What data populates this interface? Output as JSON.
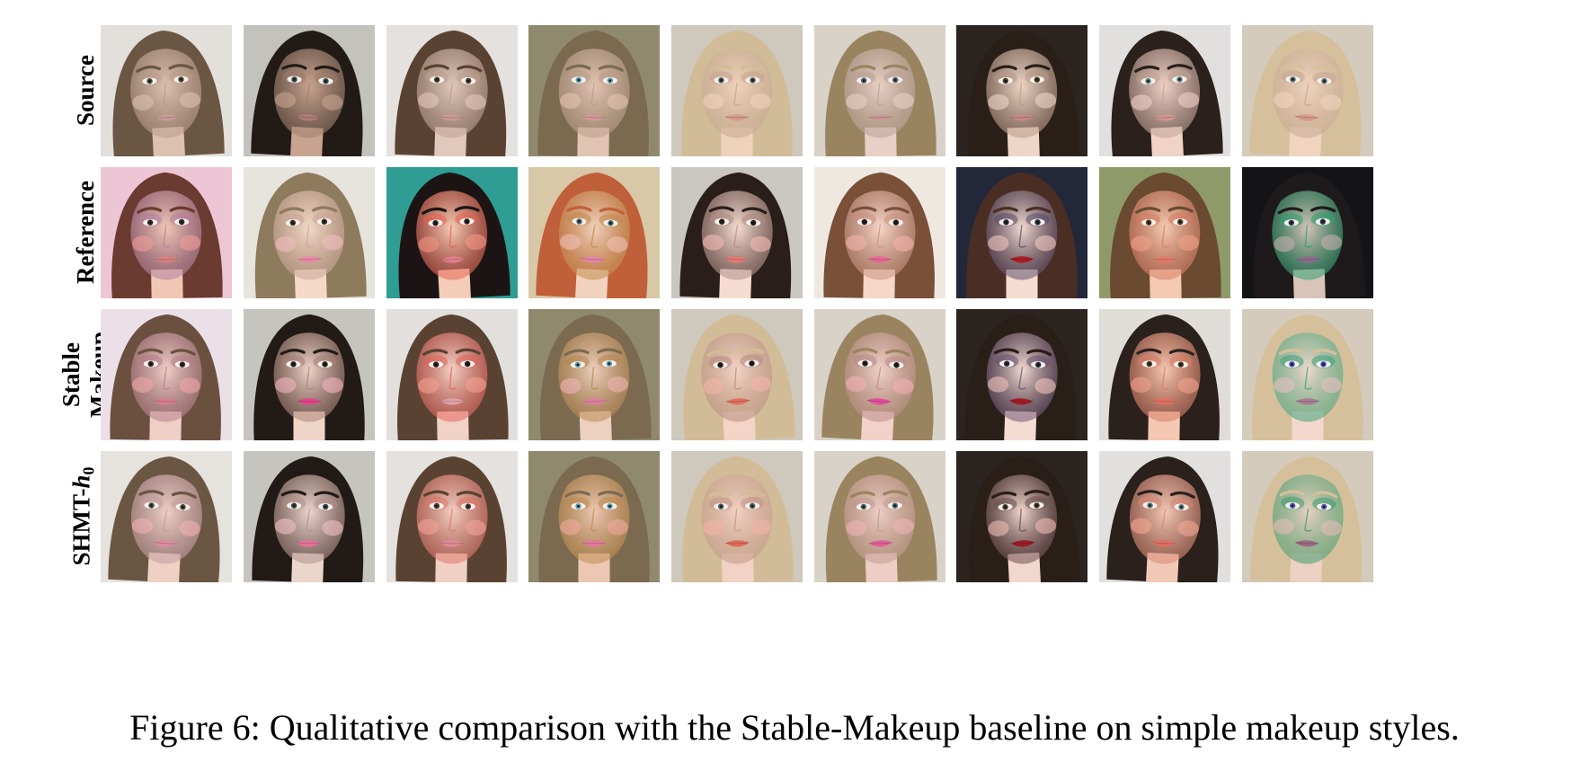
{
  "figure": {
    "row_labels": [
      {
        "id": "source",
        "lines": [
          "Source"
        ]
      },
      {
        "id": "reference",
        "lines": [
          "Reference"
        ]
      },
      {
        "id": "stable-makeup",
        "lines": [
          "Stable",
          "Makeup"
        ]
      },
      {
        "id": "shmt",
        "prefix": "SHMT-",
        "var": "h",
        "sub": "0"
      }
    ],
    "caption": "Figure 6: Qualitative comparison with the Stable-Makeup baseline on simple makeup styles.",
    "columns": [
      {
        "source": {
          "bg": "#e3e0dc",
          "hair": "#6b5644",
          "skin": "#dcc1b0",
          "lip": "#c99c98",
          "eye": "#4a4a3c",
          "cheek": "#dcc1b0",
          "shadow": "#b89a88"
        },
        "reference": {
          "bg": "#ecc6d4",
          "hair": "#6b3a30",
          "skin": "#f0c7b4",
          "lip": "#d98080",
          "eye": "#3a2a2a",
          "cheek": "#ef9f9a",
          "shadow": "#b07fa0"
        },
        "stable": {
          "bg": "#ece0e8",
          "hair": "#6b5040",
          "skin": "#f0cfc6",
          "lip": "#d77d8f",
          "eye": "#3a2a28",
          "cheek": "#f1a8aa",
          "shadow": "#b37c8a"
        },
        "shmt": {
          "bg": "#e6e2de",
          "hair": "#6b5644",
          "skin": "#eed0c4",
          "lip": "#e08aa0",
          "eye": "#4a4a3c",
          "cheek": "#f2b0b4",
          "shadow": "#c39aa0"
        }
      },
      {
        "source": {
          "bg": "#c4c2bc",
          "hair": "#221a16",
          "skin": "#c8a490",
          "lip": "#b07c76",
          "eye": "#3c4a48",
          "cheek": "#c8a490",
          "shadow": "#9c7c6c"
        },
        "reference": {
          "bg": "#e6e4dc",
          "hair": "#8e7a5c",
          "skin": "#f3d9c6",
          "lip": "#ea88a6",
          "eye": "#3a2a24",
          "cheek": "#f4bcc0",
          "shadow": "#c8a496"
        },
        "stable": {
          "bg": "#c6c4be",
          "hair": "#221a16",
          "skin": "#efd4c8",
          "lip": "#e0458c",
          "eye": "#2a2422",
          "cheek": "#f4b6c0",
          "shadow": "#a88074"
        },
        "shmt": {
          "bg": "#c6c4be",
          "hair": "#221a16",
          "skin": "#ecd6cc",
          "lip": "#e8709c",
          "eye": "#3c4a48",
          "cheek": "#f2c0c6",
          "shadow": "#b09088"
        }
      },
      {
        "source": {
          "bg": "#e4e1de",
          "hair": "#5a4232",
          "skin": "#e2c8bc",
          "lip": "#c79a96",
          "eye": "#4a3c34",
          "cheek": "#e2c8bc",
          "shadow": "#bca090"
        },
        "reference": {
          "bg": "#2f9d93",
          "hair": "#1c1414",
          "skin": "#f4cdb8",
          "lip": "#e0808a",
          "eye": "#2a1c1c",
          "cheek": "#f39682",
          "shadow": "#e5604e"
        },
        "stable": {
          "bg": "#e2dfdc",
          "hair": "#5a4232",
          "skin": "#f1d2c6",
          "lip": "#e0a0a6",
          "eye": "#2a1c1c",
          "cheek": "#f3a292",
          "shadow": "#e4605a"
        },
        "shmt": {
          "bg": "#e4e1de",
          "hair": "#5a4232",
          "skin": "#f0d0c2",
          "lip": "#e08a96",
          "eye": "#4a3c34",
          "cheek": "#f2a498",
          "shadow": "#e2746a"
        }
      },
      {
        "source": {
          "bg": "#8f8a6e",
          "hair": "#7c6a50",
          "skin": "#e2c4b2",
          "lip": "#d09a98",
          "eye": "#5c9cb0",
          "cheek": "#e2c4b2",
          "shadow": "#b89c88"
        },
        "reference": {
          "bg": "#d8c8a8",
          "hair": "#c0603a",
          "skin": "#f0d2be",
          "lip": "#e484a6",
          "eye": "#4a6a6a",
          "cheek": "#f0c0b8",
          "shadow": "#c08a4a"
        },
        "stable": {
          "bg": "#8f8a6e",
          "hair": "#7c6a50",
          "skin": "#ecd0c0",
          "lip": "#e07ea0",
          "eye": "#5c9cb0",
          "cheek": "#f0b6b8",
          "shadow": "#b8864c"
        },
        "shmt": {
          "bg": "#8f8a6e",
          "hair": "#7c6a50",
          "skin": "#ecc8b4",
          "lip": "#e07a9a",
          "eye": "#5c9cb0",
          "cheek": "#f0aaa0",
          "shadow": "#c08a4a"
        }
      },
      {
        "source": {
          "bg": "#cfc8bc",
          "hair": "#d2bc98",
          "skin": "#efd2bc",
          "lip": "#d69c8e",
          "eye": "#4e5a5c",
          "cheek": "#efd2bc",
          "shadow": "#c2a48e"
        },
        "reference": {
          "bg": "#cac6c2",
          "hair": "#2a1e1a",
          "skin": "#f6dcd0",
          "lip": "#e27a72",
          "eye": "#2a1e1a",
          "cheek": "#f4bcb4",
          "shadow": "#b08c84"
        },
        "stable": {
          "bg": "#cfc8bc",
          "hair": "#d2bc98",
          "skin": "#f4d4c6",
          "lip": "#e2705e",
          "eye": "#2a1e1a",
          "cheek": "#f4b4aa",
          "shadow": "#b48a7c"
        },
        "shmt": {
          "bg": "#cfc8bc",
          "hair": "#d2bc98",
          "skin": "#f2d2c4",
          "lip": "#e06c5c",
          "eye": "#4e5a5c",
          "cheek": "#f3b2a8",
          "shadow": "#bf9484"
        }
      },
      {
        "source": {
          "bg": "#d8d2c8",
          "hair": "#9a8460",
          "skin": "#e8d0c6",
          "lip": "#c69a96",
          "eye": "#4a6468",
          "cheek": "#e8d0c6",
          "shadow": "#b8a096"
        },
        "reference": {
          "bg": "#eee8e0",
          "hair": "#7a5038",
          "skin": "#f6d6c8",
          "lip": "#e46a94",
          "eye": "#2a1e1a",
          "cheek": "#f4b4ae",
          "shadow": "#c89080"
        },
        "stable": {
          "bg": "#d8d2c8",
          "hair": "#9a8460",
          "skin": "#f2d2c8",
          "lip": "#e0509a",
          "eye": "#2a1e1a",
          "cheek": "#f3b0b2",
          "shadow": "#b88a86"
        },
        "shmt": {
          "bg": "#d8d2c8",
          "hair": "#9a8460",
          "skin": "#eecec4",
          "lip": "#e0609a",
          "eye": "#4a6468",
          "cheek": "#f2b4b6",
          "shadow": "#c09890"
        }
      },
      {
        "source": {
          "bg": "#2c2420",
          "hair": "#2a1e18",
          "skin": "#eed6c6",
          "lip": "#c48a82",
          "eye": "#4a3a2a",
          "cheek": "#eed6c6",
          "shadow": "#b89886"
        },
        "reference": {
          "bg": "#22283a",
          "hair": "#4a2e24",
          "skin": "#f4dcd0",
          "lip": "#a81e28",
          "eye": "#2a2a3a",
          "cheek": "#f0c8c0",
          "shadow": "#5a4a6a"
        },
        "stable": {
          "bg": "#2c2420",
          "hair": "#2a1e18",
          "skin": "#f4dcd2",
          "lip": "#a01e26",
          "eye": "#2a2a3a",
          "cheek": "#f0c4bc",
          "shadow": "#6a5070"
        },
        "shmt": {
          "bg": "#2c2420",
          "hair": "#2a1e18",
          "skin": "#f2d8cc",
          "lip": "#9a1c24",
          "eye": "#4a3a2a",
          "cheek": "#eebcb4",
          "shadow": "#6a4a50"
        }
      },
      {
        "source": {
          "bg": "#e2e0de",
          "hair": "#2a201c",
          "skin": "#f0d2c6",
          "lip": "#d09890",
          "eye": "#5a7a80",
          "cheek": "#f0d2c6",
          "shadow": "#c0a094"
        },
        "reference": {
          "bg": "#8e9a6a",
          "hair": "#6a4a30",
          "skin": "#f4cab2",
          "lip": "#e27a6a",
          "eye": "#4a3a2a",
          "cheek": "#f2a28a",
          "shadow": "#d87a62"
        },
        "stable": {
          "bg": "#e0dcd8",
          "hair": "#2a201c",
          "skin": "#f4c8b2",
          "lip": "#e27060",
          "eye": "#4a3a2a",
          "cheek": "#f2a48e",
          "shadow": "#d87a62"
        },
        "shmt": {
          "bg": "#e2e0de",
          "hair": "#2a201c",
          "skin": "#f2c8b6",
          "lip": "#e06e62",
          "eye": "#5a7a80",
          "cheek": "#f2a892",
          "shadow": "#d88672"
        }
      },
      {
        "source": {
          "bg": "#d4cbbc",
          "hair": "#d6c09c",
          "skin": "#f0d4c0",
          "lip": "#d49a8a",
          "eye": "#5a6a6c",
          "cheek": "#f0d4c0",
          "shadow": "#c4a690"
        },
        "reference": {
          "bg": "#141418",
          "hair": "#1e1a1c",
          "skin": "#d8c4b8",
          "lip": "#8c6c8c",
          "eye": "#2a3a4a",
          "cheek": "#c8b0b0",
          "shadow": "#2aa070"
        },
        "stable": {
          "bg": "#d4cbbc",
          "hair": "#d6c09c",
          "skin": "#f2d8cc",
          "lip": "#a87c96",
          "eye": "#4a4ac0",
          "cheek": "#e8c0c0",
          "shadow": "#3aa07a"
        },
        "shmt": {
          "bg": "#d4cbbc",
          "hair": "#d6c09c",
          "skin": "#ecd0c2",
          "lip": "#9c6a88",
          "eye": "#5a5ab8",
          "cheek": "#e4bcb8",
          "shadow": "#3a9a6c"
        }
      }
    ]
  }
}
